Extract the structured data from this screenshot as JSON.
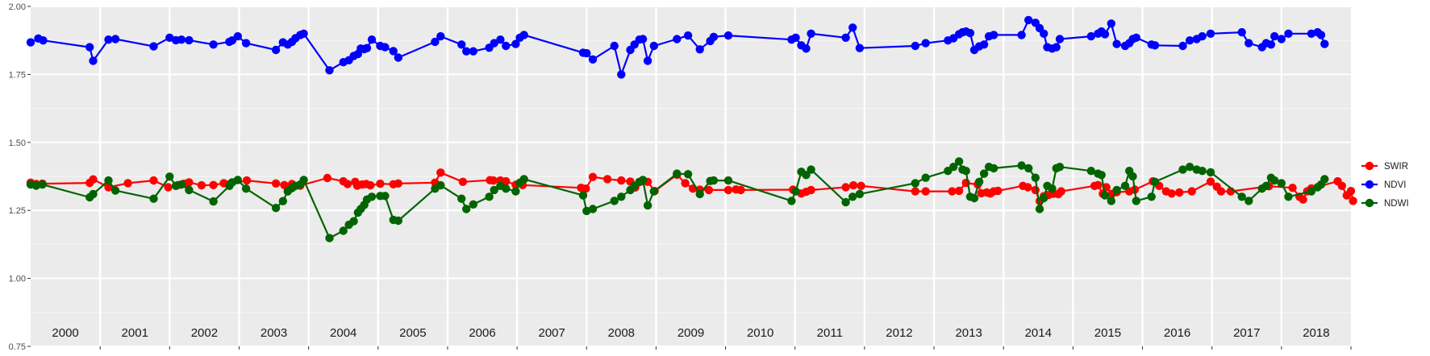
{
  "chart_data": {
    "type": "line",
    "title": "",
    "xlabel": "",
    "ylabel": "",
    "ylim": [
      0.75,
      2.0
    ],
    "xlim": [
      2000.0,
      2019.0
    ],
    "y_ticks": [
      "0.75",
      "1.00",
      "1.25",
      "1.50",
      "1.75",
      "2.00"
    ],
    "grid": true,
    "legend_position": "right",
    "year_labels": [
      "2000",
      "2001",
      "2002",
      "2003",
      "2004",
      "2005",
      "2006",
      "2007",
      "2008",
      "2009",
      "2010",
      "2011",
      "2012",
      "2013",
      "2014",
      "2015",
      "2016",
      "2017",
      "2018"
    ],
    "series": [
      {
        "name": "SWIR",
        "color": "#ff0000",
        "x": [
          2000.0,
          2000.08,
          2000.17,
          2000.85,
          2000.9,
          2001.12,
          2001.4,
          2001.77,
          2001.98,
          2002.12,
          2002.21,
          2002.28,
          2002.46,
          2002.63,
          2002.78,
          2002.86,
          2003.11,
          2003.53,
          2003.65,
          2003.76,
          2003.88,
          2004.27,
          2004.5,
          2004.56,
          2004.67,
          2004.7,
          2004.77,
          2004.83,
          2004.89,
          2005.03,
          2005.22,
          2005.29,
          2005.82,
          2005.9,
          2006.22,
          2006.61,
          2006.66,
          2006.76,
          2006.84,
          2006.98,
          2007.08,
          2007.92,
          2007.99,
          2008.09,
          2008.3,
          2008.5,
          2008.63,
          2008.7,
          2008.88,
          2008.98,
          2009.3,
          2009.42,
          2009.53,
          2009.63,
          2009.76,
          2010.04,
          2010.15,
          2010.22,
          2010.97,
          2011.09,
          2011.16,
          2011.23,
          2011.73,
          2011.84,
          2011.95,
          2012.73,
          2012.88,
          2013.26,
          2013.36,
          2013.46,
          2013.63,
          2013.68,
          2013.76,
          2013.81,
          2013.86,
          2013.92,
          2014.28,
          2014.35,
          2014.46,
          2014.52,
          2014.58,
          2014.65,
          2014.72,
          2014.79,
          2014.83,
          2015.31,
          2015.36,
          2015.43,
          2015.48,
          2015.56,
          2015.63,
          2015.81,
          2015.89,
          2016.15,
          2016.24,
          2016.34,
          2016.42,
          2016.53,
          2016.71,
          2016.98,
          2017.07,
          2017.13,
          2017.27,
          2017.82,
          2018.16,
          2018.26,
          2018.31,
          2018.37,
          2018.43,
          2018.81,
          2018.87,
          2018.94,
          2019.0,
          2019.03
        ],
        "values": [
          1.352,
          1.347,
          1.348,
          1.351,
          1.364,
          1.335,
          1.35,
          1.36,
          1.335,
          1.343,
          1.348,
          1.353,
          1.342,
          1.343,
          1.35,
          1.346,
          1.36,
          1.349,
          1.343,
          1.347,
          1.341,
          1.369,
          1.357,
          1.347,
          1.355,
          1.341,
          1.345,
          1.347,
          1.342,
          1.348,
          1.346,
          1.349,
          1.352,
          1.389,
          1.355,
          1.361,
          1.36,
          1.36,
          1.357,
          1.344,
          1.343,
          1.333,
          1.33,
          1.373,
          1.365,
          1.36,
          1.356,
          1.334,
          1.355,
          1.321,
          1.381,
          1.35,
          1.33,
          1.326,
          1.325,
          1.325,
          1.327,
          1.325,
          1.326,
          1.312,
          1.318,
          1.325,
          1.335,
          1.342,
          1.34,
          1.32,
          1.32,
          1.32,
          1.322,
          1.351,
          1.345,
          1.313,
          1.316,
          1.312,
          1.32,
          1.322,
          1.34,
          1.335,
          1.325,
          1.284,
          1.302,
          1.307,
          1.311,
          1.31,
          1.32,
          1.34,
          1.343,
          1.311,
          1.335,
          1.311,
          1.317,
          1.32,
          1.326,
          1.357,
          1.34,
          1.32,
          1.312,
          1.316,
          1.32,
          1.356,
          1.337,
          1.32,
          1.32,
          1.339,
          1.333,
          1.3,
          1.29,
          1.32,
          1.331,
          1.357,
          1.34,
          1.305,
          1.321,
          1.285
        ]
      },
      {
        "name": "NDVI",
        "color": "#0000ff",
        "x": [
          2000.0,
          2000.11,
          2000.18,
          2000.85,
          2000.9,
          2001.12,
          2001.22,
          2001.77,
          2002.0,
          2002.09,
          2002.17,
          2002.28,
          2002.63,
          2002.86,
          2002.9,
          2002.98,
          2003.1,
          2003.53,
          2003.63,
          2003.7,
          2003.76,
          2003.81,
          2003.88,
          2003.93,
          2004.3,
          2004.5,
          2004.58,
          2004.65,
          2004.71,
          2004.75,
          2004.8,
          2004.84,
          2004.91,
          2005.03,
          2005.1,
          2005.22,
          2005.29,
          2005.82,
          2005.9,
          2006.2,
          2006.27,
          2006.37,
          2006.6,
          2006.67,
          2006.76,
          2006.84,
          2006.98,
          2007.04,
          2007.1,
          2007.95,
          2008.0,
          2008.09,
          2008.4,
          2008.5,
          2008.63,
          2008.69,
          2008.76,
          2008.81,
          2008.88,
          2008.97,
          2009.3,
          2009.46,
          2009.63,
          2009.78,
          2009.83,
          2010.04,
          2010.95,
          2011.01,
          2011.09,
          2011.16,
          2011.23,
          2011.73,
          2011.83,
          2011.93,
          2012.73,
          2012.88,
          2013.2,
          2013.28,
          2013.36,
          2013.41,
          2013.46,
          2013.52,
          2013.58,
          2013.65,
          2013.72,
          2013.79,
          2013.86,
          2014.26,
          2014.36,
          2014.46,
          2014.52,
          2014.58,
          2014.63,
          2014.7,
          2014.76,
          2014.81,
          2015.26,
          2015.36,
          2015.41,
          2015.46,
          2015.55,
          2015.63,
          2015.75,
          2015.81,
          2015.86,
          2015.91,
          2016.13,
          2016.18,
          2016.58,
          2016.68,
          2016.78,
          2016.86,
          2016.98,
          2017.43,
          2017.53,
          2017.72,
          2017.78,
          2017.85,
          2017.9,
          2018.0,
          2018.1,
          2018.43,
          2018.52,
          2018.57,
          2018.62
        ],
        "values": [
          1.868,
          1.882,
          1.875,
          1.85,
          1.8,
          1.878,
          1.88,
          1.853,
          1.885,
          1.876,
          1.878,
          1.876,
          1.86,
          1.87,
          1.875,
          1.89,
          1.865,
          1.84,
          1.868,
          1.86,
          1.87,
          1.883,
          1.895,
          1.9,
          1.765,
          1.795,
          1.802,
          1.818,
          1.825,
          1.845,
          1.843,
          1.847,
          1.878,
          1.855,
          1.85,
          1.836,
          1.812,
          1.87,
          1.89,
          1.86,
          1.835,
          1.835,
          1.848,
          1.865,
          1.878,
          1.855,
          1.862,
          1.885,
          1.895,
          1.83,
          1.828,
          1.805,
          1.855,
          1.75,
          1.84,
          1.86,
          1.878,
          1.88,
          1.8,
          1.855,
          1.88,
          1.893,
          1.842,
          1.873,
          1.888,
          1.893,
          1.878,
          1.885,
          1.857,
          1.845,
          1.9,
          1.885,
          1.922,
          1.847,
          1.855,
          1.865,
          1.875,
          1.883,
          1.898,
          1.905,
          1.908,
          1.902,
          1.84,
          1.853,
          1.86,
          1.89,
          1.895,
          1.895,
          1.95,
          1.94,
          1.92,
          1.9,
          1.85,
          1.845,
          1.85,
          1.88,
          1.89,
          1.9,
          1.908,
          1.898,
          1.937,
          1.862,
          1.855,
          1.865,
          1.88,
          1.885,
          1.86,
          1.857,
          1.855,
          1.875,
          1.88,
          1.89,
          1.9,
          1.905,
          1.865,
          1.85,
          1.865,
          1.86,
          1.89,
          1.88,
          1.9,
          1.9,
          1.905,
          1.895,
          1.862
        ],
        "__dummy": null
      },
      {
        "name": "NDWI",
        "color": "#006400",
        "x": [
          2000.0,
          2000.08,
          2000.17,
          2000.85,
          2000.9,
          2001.12,
          2001.22,
          2001.77,
          2002.0,
          2002.09,
          2002.17,
          2002.28,
          2002.63,
          2002.86,
          2002.9,
          2002.98,
          2003.1,
          2003.53,
          2003.63,
          2003.7,
          2003.76,
          2003.81,
          2003.88,
          2003.93,
          2004.3,
          2004.5,
          2004.58,
          2004.65,
          2004.71,
          2004.75,
          2004.8,
          2004.84,
          2004.91,
          2005.03,
          2005.1,
          2005.22,
          2005.29,
          2005.82,
          2005.9,
          2006.2,
          2006.27,
          2006.37,
          2006.6,
          2006.67,
          2006.76,
          2006.84,
          2006.98,
          2007.04,
          2007.1,
          2007.95,
          2008.0,
          2008.09,
          2008.4,
          2008.5,
          2008.63,
          2008.69,
          2008.76,
          2008.81,
          2008.88,
          2008.97,
          2009.3,
          2009.46,
          2009.63,
          2009.78,
          2009.83,
          2010.04,
          2010.95,
          2011.01,
          2011.09,
          2011.16,
          2011.23,
          2011.73,
          2011.83,
          2011.93,
          2012.73,
          2012.88,
          2013.2,
          2013.28,
          2013.36,
          2013.41,
          2013.46,
          2013.52,
          2013.58,
          2013.65,
          2013.72,
          2013.79,
          2013.86,
          2014.26,
          2014.36,
          2014.46,
          2014.52,
          2014.58,
          2014.63,
          2014.7,
          2014.76,
          2014.81,
          2015.26,
          2015.36,
          2015.41,
          2015.46,
          2015.55,
          2015.63,
          2015.75,
          2015.81,
          2015.86,
          2015.91,
          2016.13,
          2016.18,
          2016.58,
          2016.68,
          2016.78,
          2016.86,
          2016.98,
          2017.43,
          2017.53,
          2017.72,
          2017.78,
          2017.85,
          2017.9,
          2018.0,
          2018.1,
          2018.43,
          2018.52,
          2018.57,
          2018.62
        ],
        "values": [
          1.345,
          1.341,
          1.345,
          1.298,
          1.31,
          1.36,
          1.323,
          1.293,
          1.374,
          1.34,
          1.345,
          1.325,
          1.283,
          1.34,
          1.353,
          1.362,
          1.33,
          1.259,
          1.284,
          1.32,
          1.332,
          1.34,
          1.345,
          1.362,
          1.148,
          1.175,
          1.197,
          1.21,
          1.242,
          1.255,
          1.27,
          1.29,
          1.3,
          1.303,
          1.303,
          1.215,
          1.212,
          1.33,
          1.342,
          1.293,
          1.255,
          1.272,
          1.3,
          1.325,
          1.34,
          1.33,
          1.32,
          1.352,
          1.365,
          1.305,
          1.248,
          1.255,
          1.285,
          1.3,
          1.325,
          1.34,
          1.355,
          1.362,
          1.268,
          1.32,
          1.385,
          1.383,
          1.31,
          1.358,
          1.36,
          1.36,
          1.285,
          1.32,
          1.392,
          1.38,
          1.4,
          1.28,
          1.3,
          1.31,
          1.35,
          1.37,
          1.395,
          1.41,
          1.43,
          1.4,
          1.395,
          1.3,
          1.295,
          1.355,
          1.385,
          1.41,
          1.405,
          1.415,
          1.405,
          1.37,
          1.255,
          1.295,
          1.34,
          1.33,
          1.405,
          1.41,
          1.395,
          1.385,
          1.38,
          1.305,
          1.285,
          1.325,
          1.34,
          1.395,
          1.375,
          1.285,
          1.3,
          1.355,
          1.4,
          1.41,
          1.4,
          1.395,
          1.39,
          1.3,
          1.285,
          1.33,
          1.34,
          1.37,
          1.36,
          1.35,
          1.3,
          1.32,
          1.335,
          1.345,
          1.365
        ]
      }
    ]
  }
}
